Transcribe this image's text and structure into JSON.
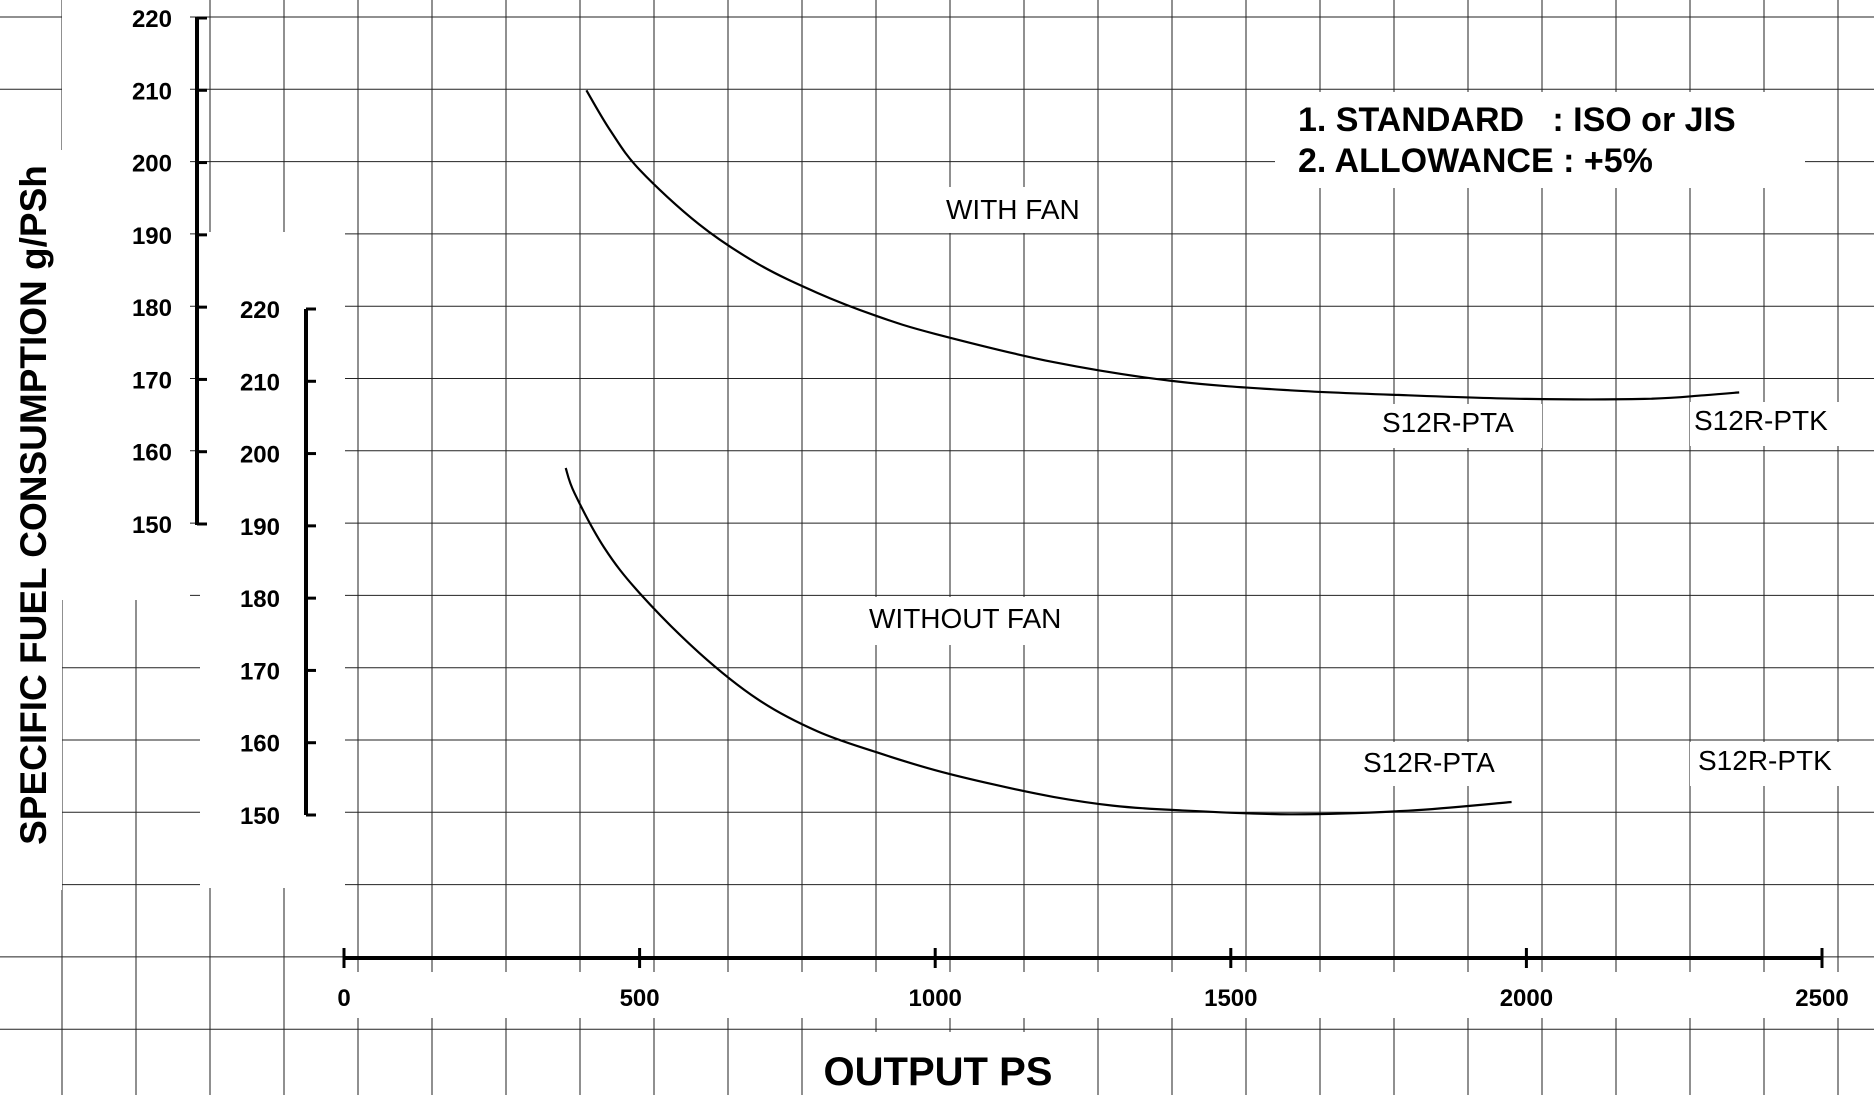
{
  "chart_data": {
    "type": "line",
    "title": "",
    "xlabel": "OUTPUT PS",
    "ylabel": "SPECIFIC FUEL CONSUMPTION g/PSh",
    "x_ticks": [
      "0",
      "500",
      "1000",
      "1500",
      "2000",
      "2500"
    ],
    "xlim": [
      0,
      2500
    ],
    "axes": [
      {
        "name": "with-fan-axis",
        "ticks": [
          "220",
          "210",
          "200",
          "190",
          "180",
          "170",
          "160",
          "150"
        ],
        "ylim": [
          150,
          220
        ]
      },
      {
        "name": "without-fan-axis",
        "ticks": [
          "220",
          "210",
          "200",
          "190",
          "180",
          "170",
          "160",
          "150"
        ],
        "ylim": [
          150,
          220
        ]
      }
    ],
    "notes": [
      "1. STANDARD   : ISO or JIS",
      "2. ALLOWANCE : +5%"
    ],
    "groups": [
      {
        "label": "WITH FAN",
        "axis": 0,
        "series_labels": [
          "S12R-PTA",
          "S12R-PTK"
        ],
        "points": [
          [
            410,
            210
          ],
          [
            450,
            204.5
          ],
          [
            500,
            199
          ],
          [
            600,
            191.5
          ],
          [
            700,
            186
          ],
          [
            800,
            182
          ],
          [
            900,
            178.8
          ],
          [
            1000,
            176.3
          ],
          [
            1200,
            172.4
          ],
          [
            1400,
            169.8
          ],
          [
            1600,
            168.5
          ],
          [
            1800,
            167.8
          ],
          [
            2000,
            167.3
          ],
          [
            2200,
            167.3
          ],
          [
            2300,
            167.8
          ],
          [
            2360,
            168.2
          ]
        ]
      },
      {
        "label": "WITHOUT FAN",
        "axis": 1,
        "series_labels": [
          "S12R-PTA",
          "S12R-PTK"
        ],
        "points": [
          [
            375,
            198
          ],
          [
            390,
            194.5
          ],
          [
            440,
            187
          ],
          [
            500,
            180.7
          ],
          [
            600,
            172.5
          ],
          [
            700,
            166
          ],
          [
            800,
            161.6
          ],
          [
            900,
            158.7
          ],
          [
            1000,
            156.2
          ],
          [
            1100,
            154.2
          ],
          [
            1200,
            152.5
          ],
          [
            1300,
            151.3
          ],
          [
            1400,
            150.7
          ],
          [
            1600,
            150.1
          ],
          [
            1800,
            150.6
          ],
          [
            1975,
            151.8
          ]
        ]
      }
    ]
  }
}
